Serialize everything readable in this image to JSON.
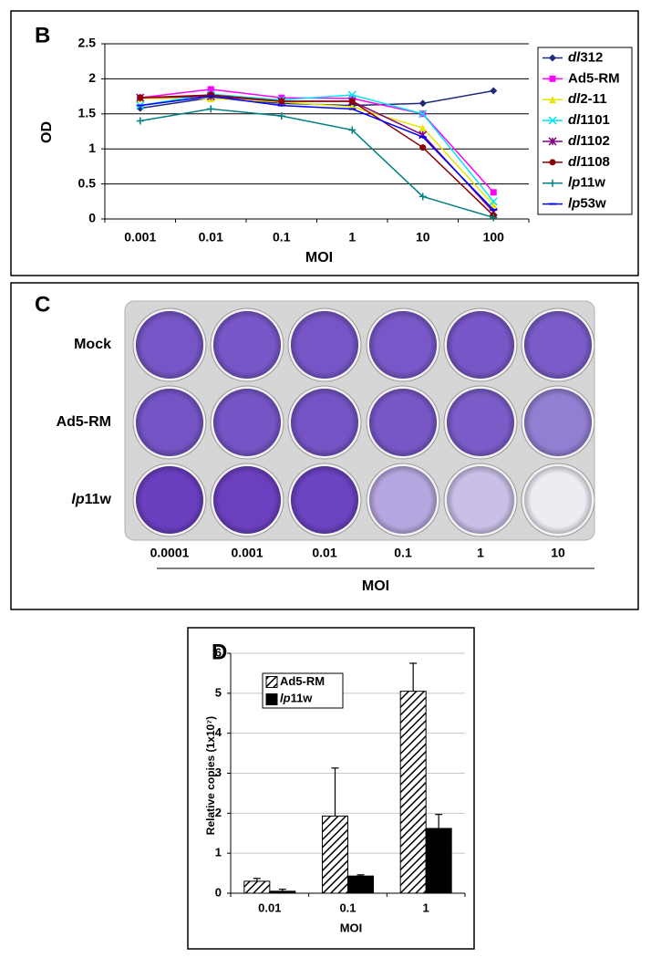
{
  "chart_data": [
    {
      "type": "line",
      "panel_label": "B",
      "x_label": "MOI",
      "y_label": "OD",
      "categories": [
        "0.001",
        "0.01",
        "0.1",
        "1",
        "10",
        "100"
      ],
      "ylim": [
        0,
        2.5
      ],
      "yticks": [
        0,
        0.5,
        1,
        1.5,
        2,
        2.5
      ],
      "grid": true,
      "legend": "right",
      "series": [
        {
          "name": "dl312",
          "color": "#1f2a7a",
          "marker": "diamond",
          "values": [
            1.58,
            1.73,
            1.65,
            1.62,
            1.65,
            1.83
          ]
        },
        {
          "name": "Ad5-RM",
          "color": "#ff00ff",
          "marker": "square",
          "values": [
            1.73,
            1.85,
            1.73,
            1.72,
            1.5,
            0.38
          ]
        },
        {
          "name": "dl2-11",
          "color": "#e6e600",
          "marker": "triangle",
          "values": [
            1.72,
            1.72,
            1.67,
            1.6,
            1.3,
            0.2
          ]
        },
        {
          "name": "dl1101",
          "color": "#00e5ee",
          "marker": "x",
          "values": [
            1.62,
            1.78,
            1.7,
            1.77,
            1.5,
            0.25
          ]
        },
        {
          "name": "dl1102",
          "color": "#800080",
          "marker": "star",
          "values": [
            1.73,
            1.75,
            1.68,
            1.68,
            1.2,
            0.1
          ]
        },
        {
          "name": "dl1108",
          "color": "#8b0000",
          "marker": "circle",
          "values": [
            1.73,
            1.77,
            1.68,
            1.68,
            1.02,
            0.05
          ]
        },
        {
          "name": "lp11w",
          "color": "#008080",
          "marker": "plus",
          "values": [
            1.4,
            1.57,
            1.47,
            1.27,
            0.32,
            0.02
          ]
        },
        {
          "name": "lp53w",
          "color": "#0000ff",
          "marker": "dash",
          "values": [
            1.62,
            1.75,
            1.62,
            1.57,
            1.17,
            0.13
          ]
        }
      ]
    },
    {
      "type": "bar",
      "panel_label": "D",
      "x_label": "MOI",
      "y_label": "Relative copies (1x10⁷)",
      "categories": [
        "0.01",
        "0.1",
        "1"
      ],
      "ylim": [
        0,
        6
      ],
      "yticks": [
        0,
        1,
        2,
        3,
        4,
        5,
        6
      ],
      "grid": true,
      "legend": "top-left",
      "series": [
        {
          "name": "Ad5-RM",
          "color": "#000000",
          "pattern": "hatch",
          "values": [
            0.3,
            1.93,
            5.05
          ],
          "errors": [
            0.07,
            1.2,
            0.7
          ]
        },
        {
          "name": "lp11w",
          "color": "#000000",
          "pattern": "solid",
          "values": [
            0.05,
            0.43,
            1.62
          ],
          "errors": [
            0.05,
            0.03,
            0.35
          ]
        }
      ]
    }
  ],
  "plate": {
    "panel_label": "C",
    "row_labels": [
      "Mock",
      "Ad5-RM",
      "lp11w"
    ],
    "column_labels": [
      "0.0001",
      "0.001",
      "0.01",
      "0.1",
      "1",
      "10"
    ],
    "x_label": "MOI"
  }
}
